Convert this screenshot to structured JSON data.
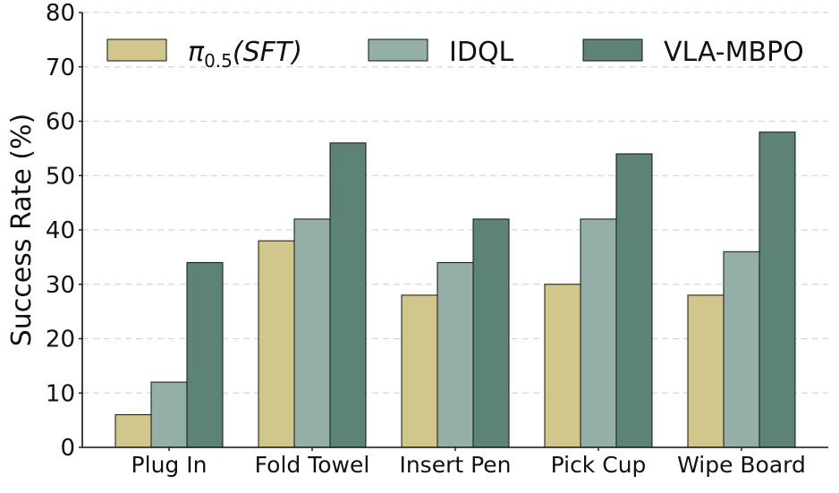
{
  "chart_data": {
    "type": "bar",
    "title": "",
    "xlabel": "",
    "ylabel": "Success Rate (%)",
    "ylim": [
      0,
      80
    ],
    "yticks": [
      0,
      10,
      20,
      30,
      40,
      50,
      60,
      70,
      80
    ],
    "grid": "horizontal dashed",
    "legend_placement": "top",
    "categories": [
      "Plug In",
      "Fold Towel",
      "Insert Pen",
      "Pick Cup",
      "Wipe Board"
    ],
    "series": [
      {
        "name": "π0.5(SFT)",
        "legend_main": "π",
        "legend_sub": "0.5",
        "legend_tail": "(SFT)",
        "color": "#d2c78a",
        "values": [
          6,
          38,
          28,
          30,
          28
        ]
      },
      {
        "name": "IDQL",
        "color": "#94aea8",
        "values": [
          12,
          42,
          34,
          42,
          36
        ]
      },
      {
        "name": "VLA-MBPO",
        "color": "#5d8276",
        "values": [
          34,
          56,
          42,
          54,
          58
        ]
      }
    ]
  }
}
